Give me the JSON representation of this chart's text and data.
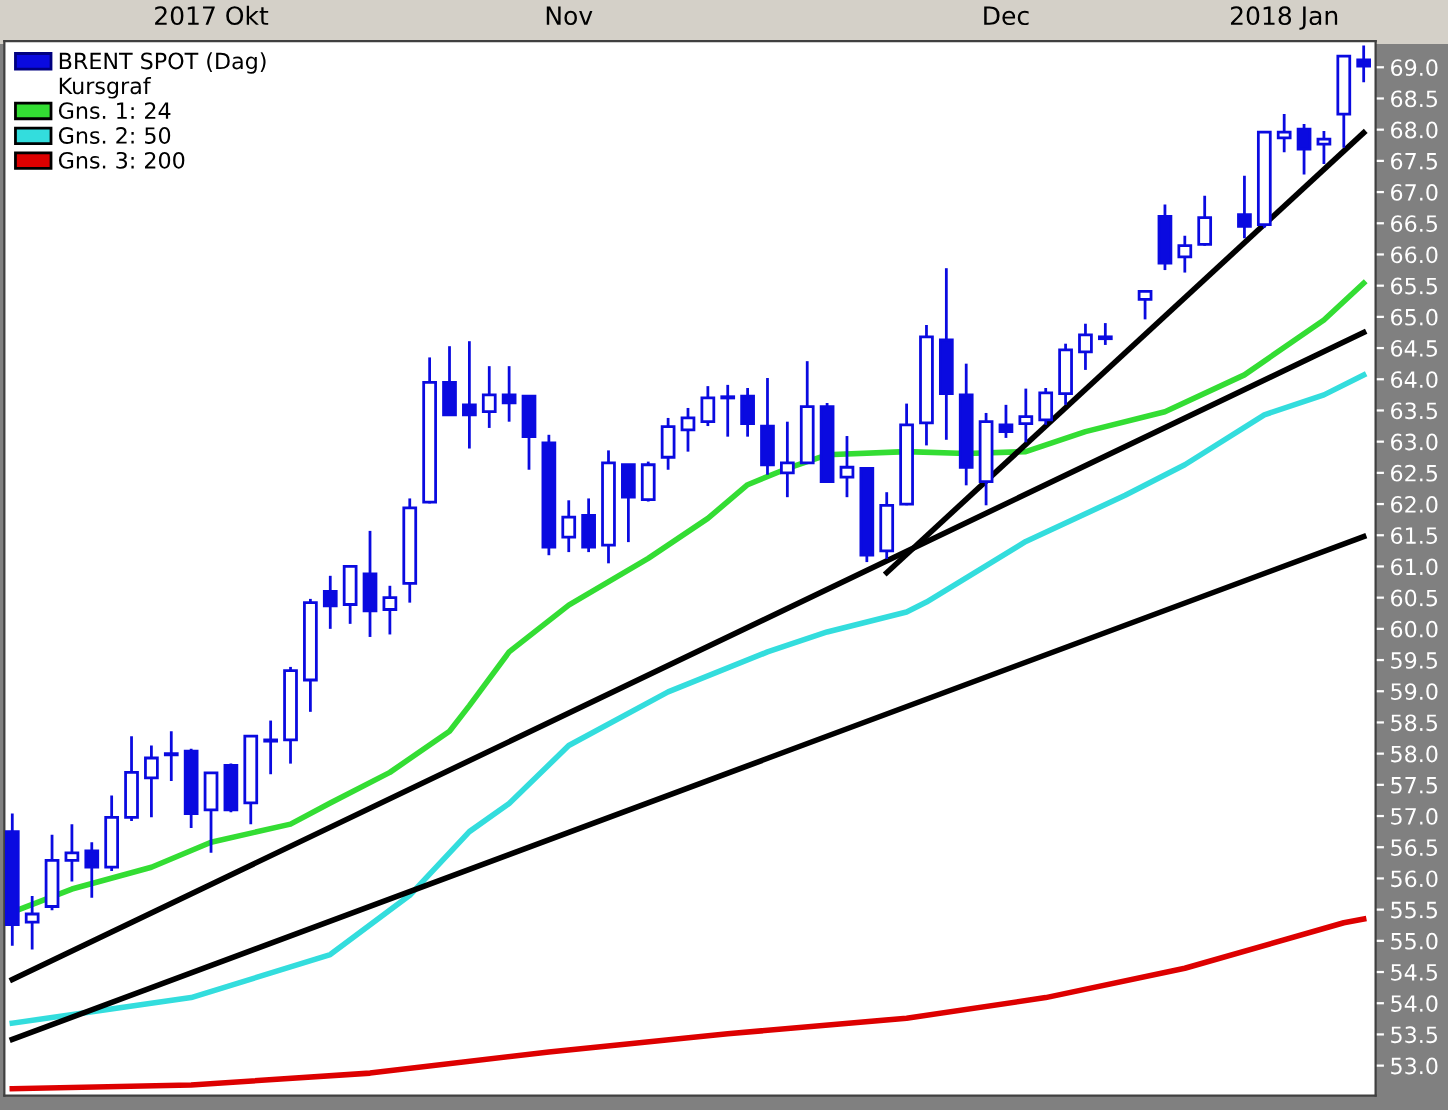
{
  "chart_data": {
    "type": "candlestick",
    "categories": [
      null,
      null,
      null,
      null,
      null,
      null,
      null,
      null,
      null,
      null,
      "2017 Okt",
      null,
      null,
      null,
      null,
      null,
      null,
      null,
      null,
      null,
      null,
      null,
      null,
      null,
      null,
      null,
      null,
      null,
      "Nov",
      null,
      null,
      null,
      null,
      null,
      null,
      null,
      null,
      null,
      null,
      null,
      null,
      null,
      null,
      null,
      null,
      null,
      null,
      null,
      null,
      null,
      "Dec",
      null,
      null,
      null,
      null,
      null,
      null,
      null,
      null,
      null,
      null,
      null,
      null,
      null,
      "2018 Jan",
      null,
      null,
      null,
      null
    ],
    "series": [
      {
        "name": "BRENT SPOT (Dag)",
        "color": "#0a0ae0",
        "ohlc": [
          [
            56.75,
            57.04,
            54.92,
            55.26
          ],
          [
            55.3,
            55.72,
            54.86,
            55.43
          ],
          [
            55.55,
            56.7,
            55.49,
            56.29
          ],
          [
            56.29,
            56.87,
            55.95,
            56.41
          ],
          [
            56.44,
            56.58,
            55.69,
            56.18
          ],
          [
            56.18,
            57.33,
            56.12,
            56.98
          ],
          [
            56.98,
            58.28,
            56.92,
            57.7
          ],
          [
            57.61,
            58.13,
            56.98,
            57.93
          ],
          [
            57.98,
            58.36,
            57.56,
            58.0
          ],
          [
            58.04,
            58.08,
            56.81,
            57.04
          ],
          [
            57.1,
            57.69,
            56.41,
            57.69
          ],
          [
            57.81,
            57.84,
            57.06,
            57.1
          ],
          [
            57.21,
            58.28,
            56.87,
            58.28
          ],
          [
            58.2,
            58.53,
            57.67,
            58.22
          ],
          [
            58.22,
            59.39,
            57.84,
            59.33
          ],
          [
            59.18,
            60.48,
            58.67,
            60.42
          ],
          [
            60.6,
            60.85,
            60.0,
            60.37
          ],
          [
            60.39,
            61.02,
            60.08,
            61.0
          ],
          [
            60.88,
            61.57,
            59.87,
            60.29
          ],
          [
            60.31,
            60.69,
            59.91,
            60.5
          ],
          [
            60.73,
            62.09,
            60.42,
            61.94
          ],
          [
            62.03,
            64.35,
            62.01,
            63.95
          ],
          [
            63.95,
            64.53,
            63.43,
            63.43
          ],
          [
            63.59,
            64.61,
            62.89,
            63.43
          ],
          [
            63.48,
            64.21,
            63.22,
            63.75
          ],
          [
            63.75,
            64.21,
            63.32,
            63.62
          ],
          [
            63.73,
            63.73,
            62.55,
            63.08
          ],
          [
            62.98,
            63.11,
            61.18,
            61.31
          ],
          [
            61.47,
            62.06,
            61.23,
            61.79
          ],
          [
            61.82,
            62.09,
            61.23,
            61.31
          ],
          [
            61.34,
            62.86,
            61.05,
            62.66
          ],
          [
            62.63,
            62.63,
            61.39,
            62.11
          ],
          [
            62.07,
            62.68,
            62.04,
            62.63
          ],
          [
            62.75,
            63.38,
            62.55,
            63.24
          ],
          [
            63.19,
            63.54,
            62.84,
            63.38
          ],
          [
            63.32,
            63.89,
            63.25,
            63.7
          ],
          [
            63.7,
            63.91,
            63.08,
            63.72
          ],
          [
            63.73,
            63.86,
            63.08,
            63.29
          ],
          [
            63.25,
            64.02,
            62.47,
            62.63
          ],
          [
            62.5,
            63.32,
            62.11,
            62.66
          ],
          [
            62.66,
            64.29,
            62.66,
            63.56
          ],
          [
            63.56,
            63.62,
            62.36,
            62.36
          ],
          [
            62.43,
            63.09,
            62.11,
            62.59
          ],
          [
            62.57,
            62.57,
            61.07,
            61.18
          ],
          [
            61.25,
            62.19,
            61.12,
            61.98
          ],
          [
            62.0,
            63.61,
            61.98,
            63.27
          ],
          [
            63.3,
            64.87,
            62.94,
            64.68
          ],
          [
            64.63,
            65.78,
            63.03,
            63.77
          ],
          [
            63.75,
            64.25,
            62.3,
            62.59
          ],
          [
            62.36,
            63.46,
            61.98,
            63.32
          ],
          [
            63.27,
            63.59,
            63.06,
            63.16
          ],
          [
            63.29,
            63.85,
            62.99,
            63.4
          ],
          [
            63.35,
            63.86,
            63.27,
            63.78
          ],
          [
            63.77,
            64.57,
            63.59,
            64.47
          ],
          [
            64.44,
            64.89,
            64.15,
            64.71
          ],
          [
            64.68,
            64.9,
            64.55,
            64.65
          ],
          null,
          [
            65.28,
            65.41,
            64.96,
            65.41
          ],
          [
            66.61,
            66.8,
            65.75,
            65.86
          ],
          [
            65.96,
            66.3,
            65.71,
            66.14
          ],
          [
            66.16,
            66.94,
            66.14,
            66.59
          ],
          null,
          [
            66.64,
            67.26,
            66.26,
            66.45
          ],
          [
            66.48,
            67.98,
            66.43,
            67.96
          ],
          [
            67.87,
            68.25,
            67.64,
            67.96
          ],
          [
            68.01,
            68.09,
            67.28,
            67.69
          ],
          [
            67.77,
            67.98,
            67.45,
            67.85
          ],
          [
            68.25,
            69.18,
            67.71,
            69.18
          ],
          [
            69.12,
            69.35,
            68.76,
            69.02
          ]
        ]
      },
      {
        "type": "line",
        "name": "Gns. 1: 24",
        "color": "#33dd33",
        "values": [
          55.46,
          null,
          null,
          55.83,
          null,
          null,
          null,
          56.18,
          null,
          null,
          56.58,
          null,
          null,
          null,
          56.87,
          null,
          57.21,
          null,
          null,
          57.7,
          null,
          null,
          58.36,
          58.77,
          null,
          59.63,
          null,
          null,
          60.38,
          null,
          null,
          null,
          61.13,
          null,
          null,
          61.77,
          null,
          62.31,
          null,
          62.57,
          null,
          62.79,
          null,
          null,
          null,
          62.84,
          null,
          null,
          62.81,
          null,
          null,
          62.84,
          null,
          null,
          63.16,
          null,
          null,
          null,
          63.48,
          null,
          null,
          null,
          64.07,
          null,
          null,
          null,
          64.95,
          null,
          65.54
        ]
      },
      {
        "type": "line",
        "name": "Gns. 2: 50",
        "color": "#33dddd",
        "values": [
          53.68,
          null,
          null,
          null,
          null,
          null,
          null,
          null,
          null,
          54.09,
          null,
          null,
          null,
          null,
          null,
          null,
          54.78,
          null,
          null,
          null,
          55.73,
          null,
          null,
          56.75,
          null,
          57.2,
          null,
          null,
          58.13,
          null,
          null,
          null,
          null,
          58.99,
          null,
          null,
          null,
          null,
          59.63,
          null,
          null,
          59.95,
          null,
          null,
          null,
          60.27,
          60.43,
          null,
          null,
          null,
          null,
          61.4,
          null,
          null,
          null,
          null,
          62.14,
          null,
          null,
          62.63,
          null,
          null,
          null,
          63.43,
          null,
          null,
          63.75,
          null,
          64.07
        ]
      },
      {
        "type": "line",
        "name": "Gns. 3: 200",
        "color": "#dd0000",
        "values": [
          52.63,
          null,
          null,
          null,
          null,
          null,
          null,
          null,
          null,
          52.69,
          null,
          null,
          null,
          null,
          null,
          null,
          null,
          null,
          52.88,
          null,
          null,
          null,
          null,
          null,
          null,
          null,
          null,
          53.22,
          null,
          null,
          null,
          null,
          null,
          null,
          null,
          null,
          53.51,
          null,
          null,
          null,
          null,
          null,
          null,
          null,
          null,
          53.76,
          null,
          null,
          null,
          null,
          null,
          null,
          54.09,
          null,
          null,
          null,
          null,
          null,
          null,
          54.56,
          null,
          null,
          null,
          null,
          null,
          null,
          null,
          55.29,
          55.35
        ]
      },
      {
        "type": "line",
        "color": "#000000",
        "values": [
          54.38,
          null,
          null,
          null,
          null,
          null,
          null,
          null,
          null,
          null,
          null,
          null,
          null,
          null,
          null,
          null,
          null,
          null,
          null,
          null,
          null,
          null,
          null,
          null,
          null,
          null,
          null,
          null,
          null,
          null,
          null,
          null,
          null,
          null,
          null,
          null,
          null,
          null,
          null,
          null,
          null,
          null,
          null,
          null,
          null,
          null,
          null,
          null,
          null,
          null,
          null,
          null,
          null,
          null,
          null,
          null,
          null,
          null,
          null,
          null,
          null,
          null,
          null,
          null,
          null,
          null,
          null,
          null,
          64.75
        ]
      },
      {
        "type": "line",
        "color": "#000000",
        "values": [
          53.42,
          null,
          null,
          null,
          null,
          null,
          null,
          null,
          null,
          null,
          null,
          null,
          null,
          null,
          null,
          null,
          null,
          null,
          null,
          null,
          null,
          null,
          null,
          null,
          null,
          null,
          null,
          null,
          null,
          null,
          null,
          null,
          null,
          null,
          null,
          null,
          null,
          null,
          null,
          null,
          null,
          null,
          null,
          null,
          null,
          null,
          null,
          null,
          null,
          null,
          null,
          null,
          null,
          null,
          null,
          null,
          null,
          null,
          null,
          null,
          null,
          null,
          null,
          null,
          null,
          null,
          null,
          null,
          61.48
        ]
      },
      {
        "type": "line",
        "color": "#000000",
        "values": [
          null,
          null,
          null,
          null,
          null,
          null,
          null,
          null,
          null,
          null,
          null,
          null,
          null,
          null,
          null,
          null,
          null,
          null,
          null,
          null,
          null,
          null,
          null,
          null,
          null,
          null,
          null,
          null,
          null,
          null,
          null,
          null,
          null,
          null,
          null,
          null,
          null,
          null,
          null,
          null,
          null,
          null,
          null,
          null,
          60.9,
          null,
          null,
          null,
          null,
          null,
          null,
          null,
          null,
          null,
          null,
          null,
          null,
          null,
          null,
          null,
          null,
          null,
          null,
          null,
          null,
          null,
          null,
          null,
          67.95
        ]
      }
    ],
    "annotations": [
      "Kursgraf"
    ],
    "ylim": [
      52.52,
      69.42
    ],
    "yticks": [
      {
        "value": 53,
        "label": "53.0"
      },
      53.5,
      {
        "value": 54,
        "label": "54.0"
      },
      54.5,
      {
        "value": 55,
        "label": "55.0"
      },
      55.5,
      {
        "value": 56,
        "label": "56.0"
      },
      56.5,
      {
        "value": 57,
        "label": "57.0"
      },
      57.5,
      {
        "value": 58,
        "label": "58.0"
      },
      58.5,
      {
        "value": 59,
        "label": "59.0"
      },
      59.5,
      {
        "value": 60,
        "label": "60.0"
      },
      60.5,
      {
        "value": 61,
        "label": "61.0"
      },
      61.5,
      {
        "value": 62,
        "label": "62.0"
      },
      62.5,
      {
        "value": 63,
        "label": "63.0"
      },
      63.5,
      {
        "value": 64,
        "label": "64.0"
      },
      64.5,
      {
        "value": 65,
        "label": "65.0"
      },
      65.5,
      {
        "value": 66,
        "label": "66.0"
      },
      66.5,
      {
        "value": 67,
        "label": "67.0"
      },
      67.5,
      {
        "value": 68,
        "label": "68.0"
      },
      68.5,
      {
        "value": 69,
        "label": "69.0"
      }
    ],
    "legend": "top left",
    "grid": false
  }
}
